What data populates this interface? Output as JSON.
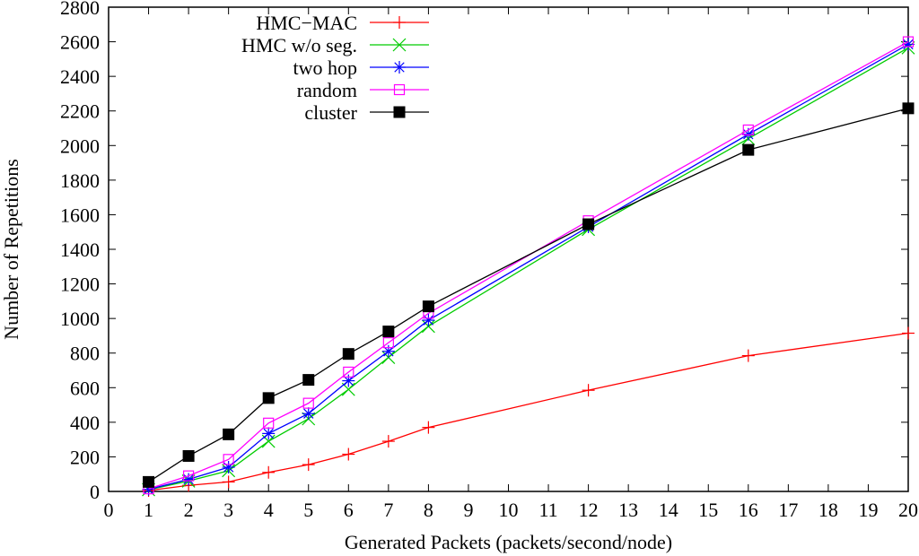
{
  "chart_data": {
    "type": "line",
    "title": "",
    "xlabel": "Generated Packets (packets/second/node)",
    "ylabel": "Number of Repetitions",
    "xlim": [
      0,
      20
    ],
    "ylim": [
      0,
      2800
    ],
    "xticks": [
      0,
      1,
      2,
      3,
      4,
      5,
      6,
      7,
      8,
      9,
      10,
      11,
      12,
      13,
      14,
      15,
      16,
      17,
      18,
      19,
      20
    ],
    "yticks": [
      0,
      200,
      400,
      600,
      800,
      1000,
      1200,
      1400,
      1600,
      1800,
      2000,
      2200,
      2400,
      2600,
      2800
    ],
    "grid": false,
    "legend_position": "top-left",
    "x": [
      1,
      2,
      3,
      4,
      5,
      6,
      7,
      8,
      12,
      16,
      20
    ],
    "series": [
      {
        "name": "HMC−MAC",
        "color": "#ff0000",
        "marker": "plus",
        "values": [
          5,
          35,
          55,
          110,
          155,
          215,
          290,
          370,
          585,
          785,
          915
        ]
      },
      {
        "name": "HMC w/o seg.",
        "color": "#00cc00",
        "marker": "cross",
        "values": [
          10,
          60,
          120,
          290,
          420,
          590,
          775,
          955,
          1515,
          2040,
          2565
        ]
      },
      {
        "name": "two hop",
        "color": "#0000ff",
        "marker": "star",
        "values": [
          12,
          70,
          140,
          335,
          450,
          640,
          810,
          990,
          1530,
          2065,
          2585
        ]
      },
      {
        "name": "random",
        "color": "#ff00ff",
        "marker": "open-square",
        "values": [
          15,
          90,
          185,
          395,
          510,
          690,
          860,
          1030,
          1565,
          2090,
          2600
        ]
      },
      {
        "name": "cluster",
        "color": "#000000",
        "marker": "filled-square",
        "values": [
          55,
          205,
          330,
          540,
          645,
          795,
          925,
          1070,
          1545,
          1975,
          2215
        ]
      }
    ]
  }
}
